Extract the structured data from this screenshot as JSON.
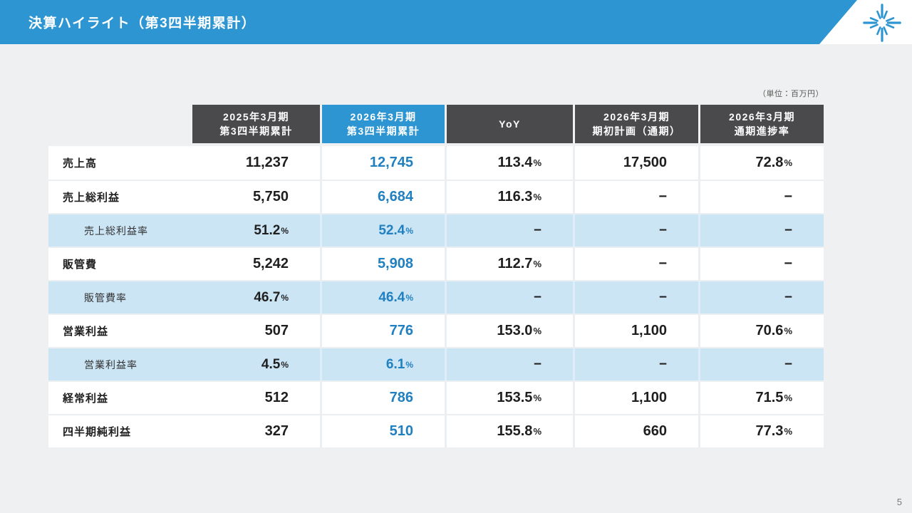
{
  "slide": {
    "title": "決算ハイライト（第3四半期累計）",
    "unit_note": "（単位：百万円）",
    "page_number": "5",
    "logo_icon": "starburst-icon",
    "colors": {
      "accent_blue": "#2D96D2",
      "header_dark": "#4A4A4C",
      "highlight_row": "#CCE5F5",
      "value_blue": "#2180C0",
      "page_background": "#EFF0F1"
    }
  },
  "table": {
    "columns": [
      {
        "lines": [
          "2025年3月期",
          "第3四半期累計"
        ],
        "style": "dark"
      },
      {
        "lines": [
          "2026年3月期",
          "第3四半期累計"
        ],
        "style": "blue"
      },
      {
        "lines": [
          "YoY"
        ],
        "style": "dark"
      },
      {
        "lines": [
          "2026年3月期",
          "期初計画（通期）"
        ],
        "style": "dark"
      },
      {
        "lines": [
          "2026年3月期",
          "通期進捗率"
        ],
        "style": "dark"
      }
    ],
    "rows": [
      {
        "label": "売上高",
        "type": "main",
        "values": [
          "11,237",
          "12,745",
          "113.4%",
          "17,500",
          "72.8%"
        ]
      },
      {
        "label": "売上総利益",
        "type": "main",
        "values": [
          "5,750",
          "6,684",
          "116.3%",
          "−",
          "−"
        ]
      },
      {
        "label": "売上総利益率",
        "type": "sub",
        "values": [
          "51.2%",
          "52.4%",
          "−",
          "−",
          "−"
        ]
      },
      {
        "label": "販管費",
        "type": "main",
        "values": [
          "5,242",
          "5,908",
          "112.7%",
          "−",
          "−"
        ]
      },
      {
        "label": "販管費率",
        "type": "sub",
        "values": [
          "46.7%",
          "46.4%",
          "−",
          "−",
          "−"
        ]
      },
      {
        "label": "営業利益",
        "type": "main",
        "values": [
          "507",
          "776",
          "153.0%",
          "1,100",
          "70.6%"
        ]
      },
      {
        "label": "営業利益率",
        "type": "sub",
        "values": [
          "4.5%",
          "6.1%",
          "−",
          "−",
          "−"
        ]
      },
      {
        "label": "経常利益",
        "type": "main",
        "values": [
          "512",
          "786",
          "153.5%",
          "1,100",
          "71.5%"
        ]
      },
      {
        "label": "四半期純利益",
        "type": "main",
        "values": [
          "327",
          "510",
          "155.8%",
          "660",
          "77.3%"
        ]
      }
    ]
  }
}
